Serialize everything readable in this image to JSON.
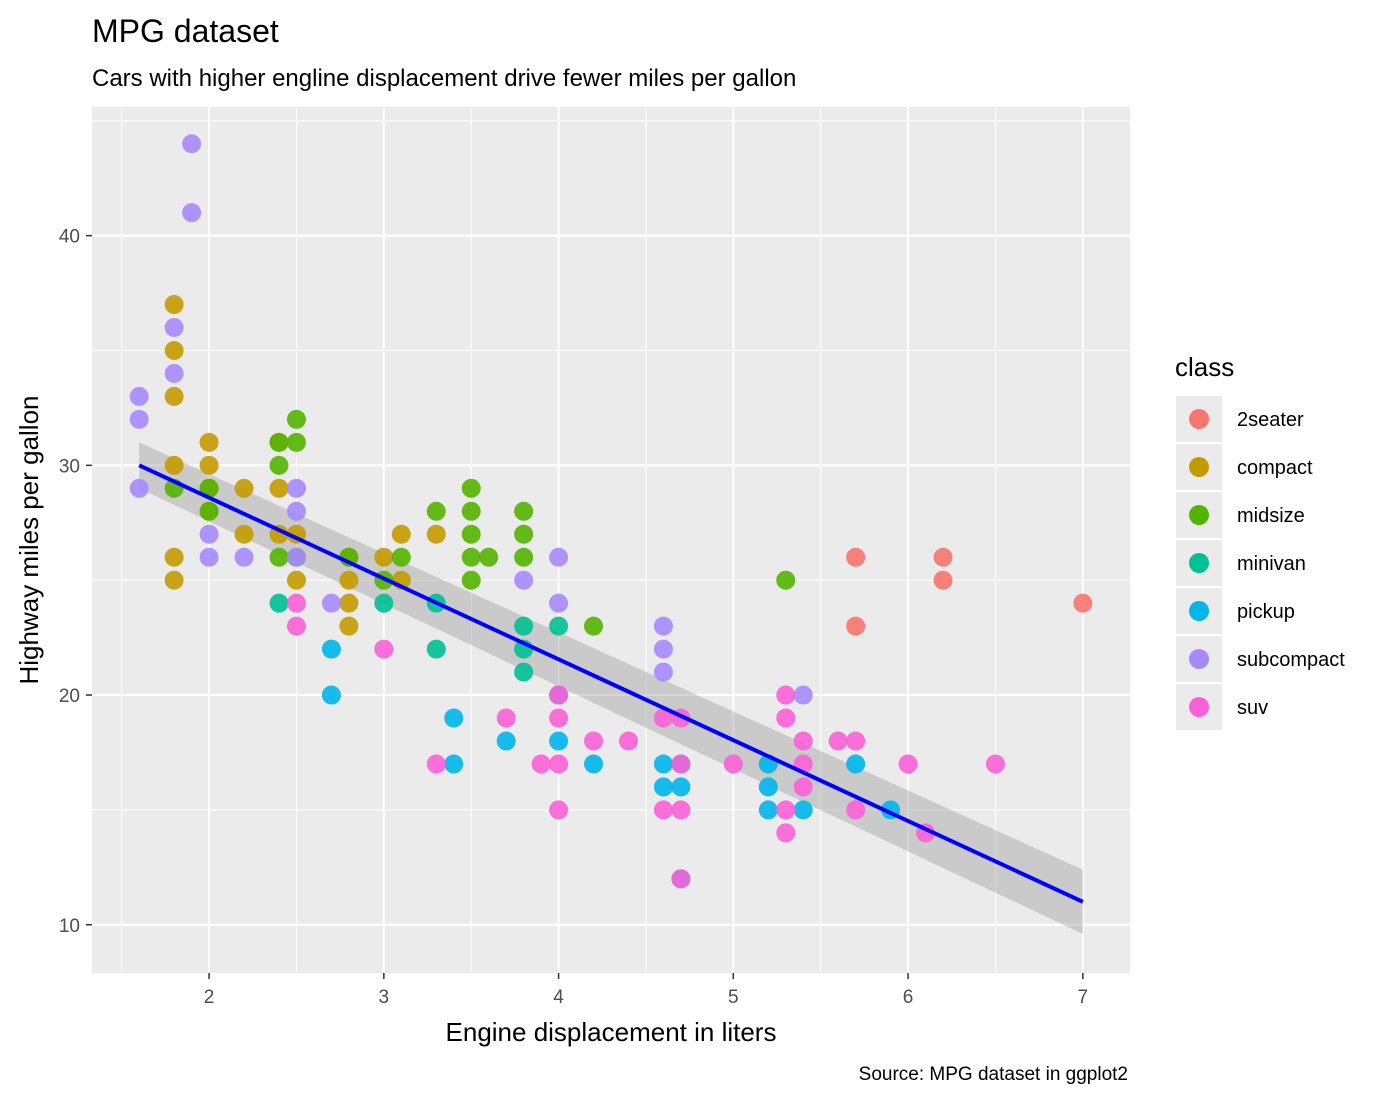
{
  "chart_data": {
    "type": "scatter",
    "title": "MPG dataset",
    "subtitle": "Cars with higher engline displacement drive fewer miles per gallon",
    "caption": "Source: MPG dataset in ggplot2",
    "xlabel": "Engine displacement in liters",
    "ylabel": "Highway miles per gallon",
    "xlim": [
      1.33,
      7.27
    ],
    "ylim": [
      7.9,
      45.6
    ],
    "xticks": [
      2,
      3,
      4,
      5,
      6,
      7
    ],
    "yticks": [
      10,
      20,
      30,
      40
    ],
    "grid": true,
    "legend": {
      "title": "class",
      "position": "right"
    },
    "series": [
      {
        "name": "2seater",
        "color": "#F8766D",
        "points": [
          [
            5.7,
            26
          ],
          [
            5.7,
            23
          ],
          [
            6.2,
            26
          ],
          [
            6.2,
            25
          ],
          [
            7.0,
            24
          ]
        ]
      },
      {
        "name": "compact",
        "color": "#C49A00",
        "points": [
          [
            1.8,
            37
          ],
          [
            1.8,
            35
          ],
          [
            1.8,
            33
          ],
          [
            1.8,
            30
          ],
          [
            1.8,
            26
          ],
          [
            1.8,
            25
          ],
          [
            2.0,
            31
          ],
          [
            2.0,
            30
          ],
          [
            2.0,
            29
          ],
          [
            2.0,
            28
          ],
          [
            2.2,
            29
          ],
          [
            2.2,
            27
          ],
          [
            2.4,
            31
          ],
          [
            2.4,
            29
          ],
          [
            2.4,
            27
          ],
          [
            2.5,
            27
          ],
          [
            2.5,
            25
          ],
          [
            2.8,
            26
          ],
          [
            2.8,
            25
          ],
          [
            2.8,
            24
          ],
          [
            2.8,
            23
          ],
          [
            3.0,
            26
          ],
          [
            3.1,
            27
          ],
          [
            3.1,
            25
          ],
          [
            3.3,
            27
          ]
        ]
      },
      {
        "name": "midsize",
        "color": "#53B400",
        "points": [
          [
            1.8,
            29
          ],
          [
            2.0,
            29
          ],
          [
            2.0,
            28
          ],
          [
            2.4,
            31
          ],
          [
            2.4,
            30
          ],
          [
            2.4,
            26
          ],
          [
            2.5,
            32
          ],
          [
            2.5,
            31
          ],
          [
            2.5,
            26
          ],
          [
            2.8,
            26
          ],
          [
            3.0,
            25
          ],
          [
            3.1,
            26
          ],
          [
            3.3,
            28
          ],
          [
            3.5,
            29
          ],
          [
            3.5,
            28
          ],
          [
            3.5,
            27
          ],
          [
            3.5,
            26
          ],
          [
            3.5,
            25
          ],
          [
            3.6,
            26
          ],
          [
            3.8,
            28
          ],
          [
            3.8,
            27
          ],
          [
            3.8,
            26
          ],
          [
            4.2,
            23
          ],
          [
            5.3,
            25
          ]
        ]
      },
      {
        "name": "minivan",
        "color": "#00C094",
        "points": [
          [
            2.4,
            24
          ],
          [
            3.0,
            24
          ],
          [
            3.3,
            24
          ],
          [
            3.3,
            22
          ],
          [
            3.8,
            23
          ],
          [
            3.8,
            22
          ],
          [
            3.8,
            21
          ],
          [
            4.0,
            23
          ]
        ]
      },
      {
        "name": "pickup",
        "color": "#00B6EB",
        "points": [
          [
            2.7,
            22
          ],
          [
            2.7,
            20
          ],
          [
            3.4,
            19
          ],
          [
            3.4,
            17
          ],
          [
            3.7,
            18
          ],
          [
            4.0,
            20
          ],
          [
            4.0,
            18
          ],
          [
            4.2,
            17
          ],
          [
            4.6,
            17
          ],
          [
            4.6,
            16
          ],
          [
            4.7,
            17
          ],
          [
            4.7,
            16
          ],
          [
            4.7,
            12
          ],
          [
            5.2,
            17
          ],
          [
            5.2,
            16
          ],
          [
            5.2,
            15
          ],
          [
            5.4,
            15
          ],
          [
            5.7,
            17
          ],
          [
            5.9,
            15
          ]
        ]
      },
      {
        "name": "subcompact",
        "color": "#A58AFF",
        "points": [
          [
            1.6,
            33
          ],
          [
            1.6,
            32
          ],
          [
            1.6,
            29
          ],
          [
            1.8,
            36
          ],
          [
            1.8,
            34
          ],
          [
            1.9,
            44
          ],
          [
            1.9,
            41
          ],
          [
            2.0,
            27
          ],
          [
            2.0,
            26
          ],
          [
            2.2,
            26
          ],
          [
            2.5,
            29
          ],
          [
            2.5,
            28
          ],
          [
            2.5,
            26
          ],
          [
            2.7,
            24
          ],
          [
            3.8,
            25
          ],
          [
            4.0,
            26
          ],
          [
            4.0,
            24
          ],
          [
            4.6,
            23
          ],
          [
            4.6,
            22
          ],
          [
            4.6,
            21
          ],
          [
            5.4,
            20
          ]
        ]
      },
      {
        "name": "suv",
        "color": "#FB61D7",
        "points": [
          [
            2.5,
            24
          ],
          [
            2.5,
            23
          ],
          [
            3.0,
            22
          ],
          [
            3.3,
            17
          ],
          [
            3.7,
            19
          ],
          [
            3.9,
            17
          ],
          [
            4.0,
            20
          ],
          [
            4.0,
            19
          ],
          [
            4.0,
            17
          ],
          [
            4.0,
            15
          ],
          [
            4.2,
            18
          ],
          [
            4.4,
            18
          ],
          [
            4.6,
            19
          ],
          [
            4.6,
            15
          ],
          [
            4.7,
            19
          ],
          [
            4.7,
            17
          ],
          [
            4.7,
            15
          ],
          [
            4.7,
            12
          ],
          [
            5.0,
            17
          ],
          [
            5.3,
            20
          ],
          [
            5.3,
            19
          ],
          [
            5.3,
            15
          ],
          [
            5.3,
            14
          ],
          [
            5.4,
            18
          ],
          [
            5.4,
            17
          ],
          [
            5.4,
            16
          ],
          [
            5.6,
            18
          ],
          [
            5.7,
            18
          ],
          [
            5.7,
            15
          ],
          [
            6.0,
            17
          ],
          [
            6.1,
            14
          ],
          [
            6.5,
            17
          ]
        ]
      }
    ],
    "trend": {
      "type": "linear",
      "x": [
        1.6,
        7.0
      ],
      "y": [
        30.0,
        11.0
      ],
      "ci_low": [
        29.0,
        9.6
      ],
      "ci_high": [
        31.0,
        12.4
      ],
      "color": "#0000FF",
      "band_color": "#999999"
    },
    "colors": {
      "panel": "#EBEBEB",
      "grid": "#FFFFFF"
    }
  }
}
